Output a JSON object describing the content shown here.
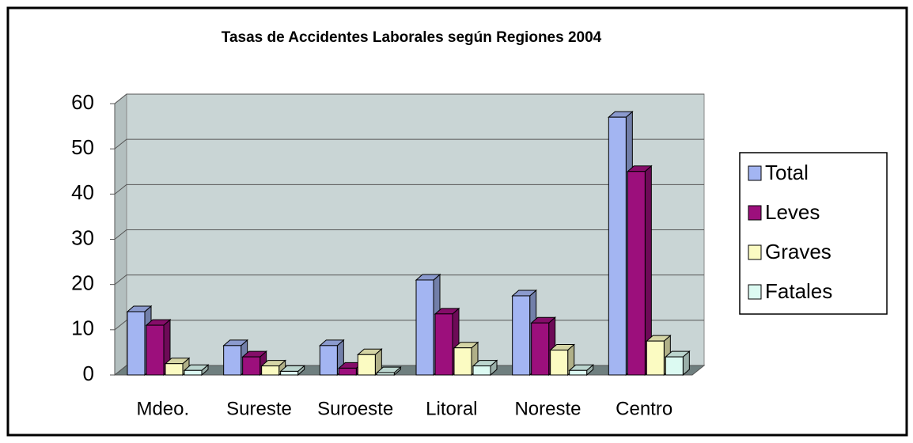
{
  "chart_data": {
    "type": "bar3d",
    "title": "Tasas de Accidentes Laborales según Regiones 2004",
    "categories": [
      "Mdeo.",
      "Sureste",
      "Suroeste",
      "Litoral",
      "Noreste",
      "Centro"
    ],
    "series": [
      {
        "name": "Total",
        "color": "#a3b5f2",
        "values": [
          14,
          6.5,
          6.5,
          21,
          17.5,
          57
        ]
      },
      {
        "name": "Leves",
        "color": "#9c0f7c",
        "values": [
          11,
          4,
          1.5,
          13.5,
          11.5,
          45
        ]
      },
      {
        "name": "Graves",
        "color": "#fbfbc2",
        "values": [
          2.5,
          2,
          4.5,
          6,
          5.5,
          7.5
        ]
      },
      {
        "name": "Fatales",
        "color": "#dcfaf2",
        "values": [
          1,
          0.8,
          0.5,
          2,
          1,
          4
        ]
      }
    ],
    "ylim": [
      0,
      60
    ],
    "yticks": [
      0,
      10,
      20,
      30,
      40,
      50,
      60
    ],
    "grid": true,
    "legend": "right"
  }
}
